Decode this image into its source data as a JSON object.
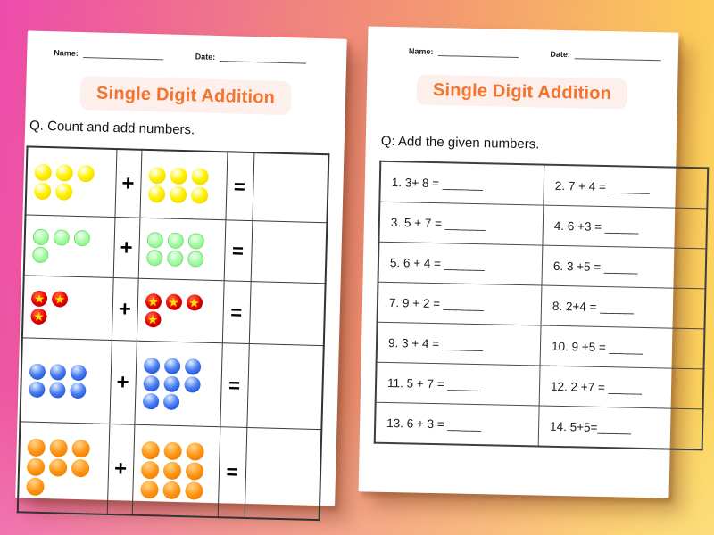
{
  "background": {
    "gradient_left": "#ee4bac",
    "gradient_middle": "#f0837f",
    "gradient_right": "#fbc95b"
  },
  "colors": {
    "title_text": "#f4742e",
    "title_bg": "#fdefeb",
    "ball_yellow": "#fff200",
    "ball_green": "#98fb98",
    "ball_red": "#e60000",
    "ball_blue": "#2f63e0",
    "ball_orange": "#ff9616",
    "star": "#ffdf00"
  },
  "left_page": {
    "name_label": "Name:",
    "date_label": "Date:",
    "title": "Single Digit Addition",
    "question": "Q. Count and add numbers.",
    "plus_sign": "+",
    "equals_sign": "=",
    "rows": [
      {
        "a": {
          "icon": "yellow-ball",
          "color": "yellow",
          "count": 5,
          "rows": [
            3,
            2
          ]
        },
        "b": {
          "icon": "yellow-ball",
          "color": "yellow",
          "count": 6,
          "rows": [
            3,
            3
          ]
        }
      },
      {
        "a": {
          "icon": "green-ball",
          "color": "green",
          "count": 4,
          "rows": [
            3,
            1
          ]
        },
        "b": {
          "icon": "green-ball",
          "color": "green",
          "count": 6,
          "rows": [
            3,
            3
          ]
        }
      },
      {
        "a": {
          "icon": "red-star-ball",
          "color": "red",
          "count": 3,
          "rows": [
            2,
            1
          ]
        },
        "b": {
          "icon": "red-star-ball",
          "color": "red",
          "count": 4,
          "rows": [
            3,
            1
          ]
        }
      },
      {
        "a": {
          "icon": "blue-ball",
          "color": "blue",
          "count": 6,
          "rows": [
            3,
            3
          ]
        },
        "b": {
          "icon": "blue-ball",
          "color": "blue",
          "count": 8,
          "rows": [
            3,
            3,
            2
          ]
        }
      },
      {
        "a": {
          "icon": "orange-ball",
          "color": "orange",
          "count": 7,
          "rows": [
            3,
            3,
            1
          ]
        },
        "b": {
          "icon": "orange-ball",
          "color": "orange",
          "count": 9,
          "rows": [
            3,
            3,
            3
          ]
        }
      }
    ]
  },
  "right_page": {
    "name_label": "Name:",
    "date_label": "Date:",
    "title": "Single Digit Addition",
    "question": "Q: Add the given numbers.",
    "problems": [
      "1. 3+ 8 = ______",
      "2. 7 + 4 = ______",
      "3. 5 + 7 = ______",
      "4. 6 +3 = _____",
      "5. 6 + 4 = ______",
      "6. 3 +5 = _____",
      "7. 9 + 2 = ______",
      "8. 2+4 = _____",
      "9. 3 + 4 = ______",
      "10. 9 +5 = _____",
      "11. 5 + 7 = _____",
      "12. 2 +7 = _____",
      "13. 6 + 3 = _____",
      "14. 5+5=_____"
    ]
  }
}
